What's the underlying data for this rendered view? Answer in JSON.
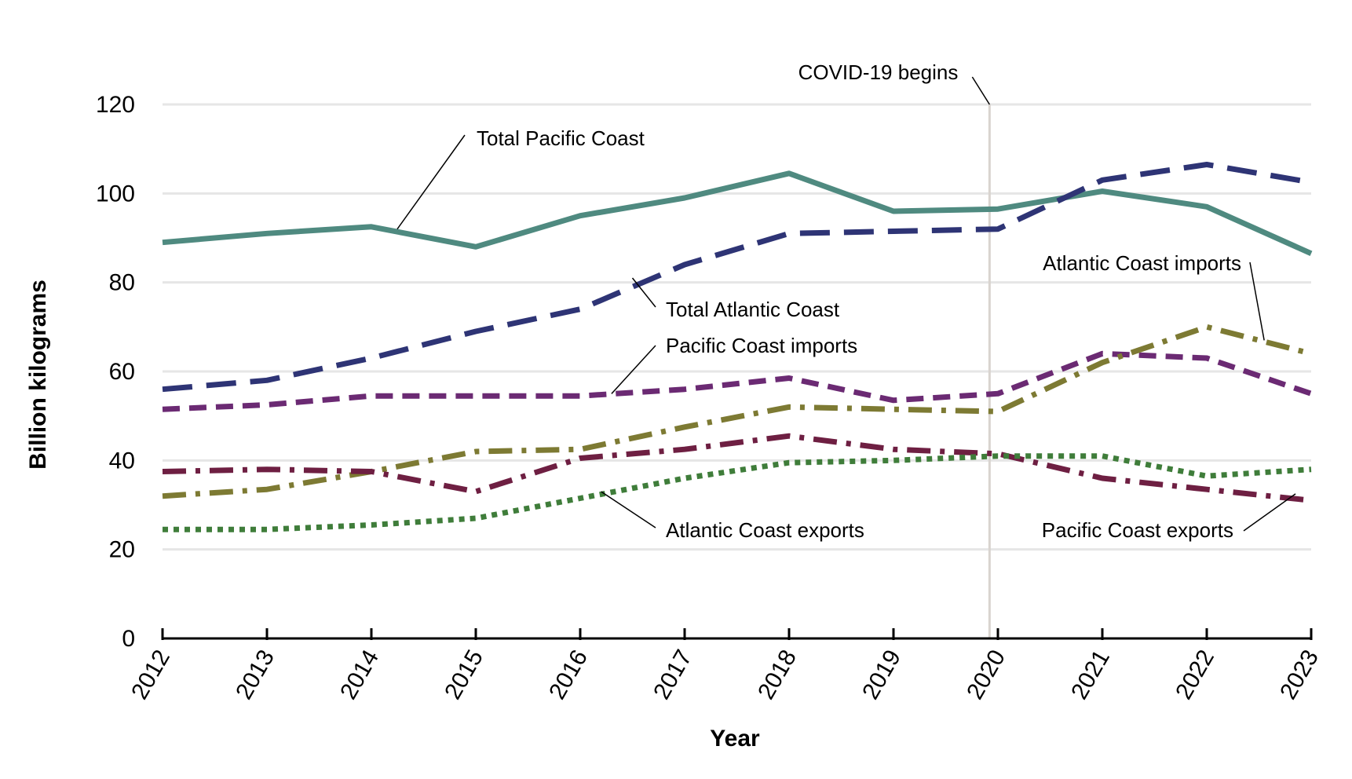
{
  "chart_data": {
    "type": "line",
    "title": "",
    "xlabel": "Year",
    "ylabel": "Billion kilograms",
    "ylim": [
      0,
      120
    ],
    "yticks": [
      "0",
      "20",
      "40",
      "60",
      "80",
      "100",
      "120"
    ],
    "grid": true,
    "legend": "none (lines labeled directly)",
    "categories": [
      "2012",
      "2013",
      "2014",
      "2015",
      "2016",
      "2017",
      "2018",
      "2019",
      "2020",
      "2021",
      "2022",
      "2023"
    ],
    "series": [
      {
        "name": "Total Pacific Coast",
        "color": "#4f8a80",
        "style": "solid",
        "values": [
          89,
          91,
          92.5,
          88,
          95,
          99,
          104.5,
          96,
          96.5,
          100.5,
          97,
          86.5
        ]
      },
      {
        "name": "Total Atlantic Coast",
        "color": "#2e3475",
        "style": "longdash",
        "values": [
          56,
          58,
          63,
          69,
          74,
          84,
          91,
          91.5,
          92,
          103,
          106.5,
          102.5
        ]
      },
      {
        "name": "Pacific Coast imports",
        "color": "#6b2a73",
        "style": "dash",
        "values": [
          51.5,
          52.5,
          54.5,
          54.5,
          54.5,
          56,
          58.5,
          53.5,
          55,
          64,
          63,
          55
        ]
      },
      {
        "name": "Atlantic Coast imports",
        "color": "#7d7a33",
        "style": "dashdot",
        "values": [
          32,
          33.5,
          37.5,
          42,
          42.5,
          47.5,
          52,
          51.5,
          51,
          62,
          70,
          64
        ]
      },
      {
        "name": "Pacific Coast exports",
        "color": "#6e1f42",
        "style": "dashdot",
        "values": [
          37.5,
          38,
          37.5,
          33,
          40.5,
          42.5,
          45.5,
          42.5,
          41.5,
          36,
          33.5,
          31
        ]
      },
      {
        "name": "Atlantic Coast exports",
        "color": "#3f7d3a",
        "style": "dot",
        "values": [
          24.5,
          24.5,
          25.5,
          27,
          31.5,
          36,
          39.5,
          40,
          41,
          41,
          36.5,
          38
        ]
      }
    ],
    "annotations": [
      {
        "text": "COVID-19 begins",
        "x": "2020 (early, just before tick)",
        "type": "vertical-line",
        "color": "#d9d4cf"
      }
    ]
  }
}
